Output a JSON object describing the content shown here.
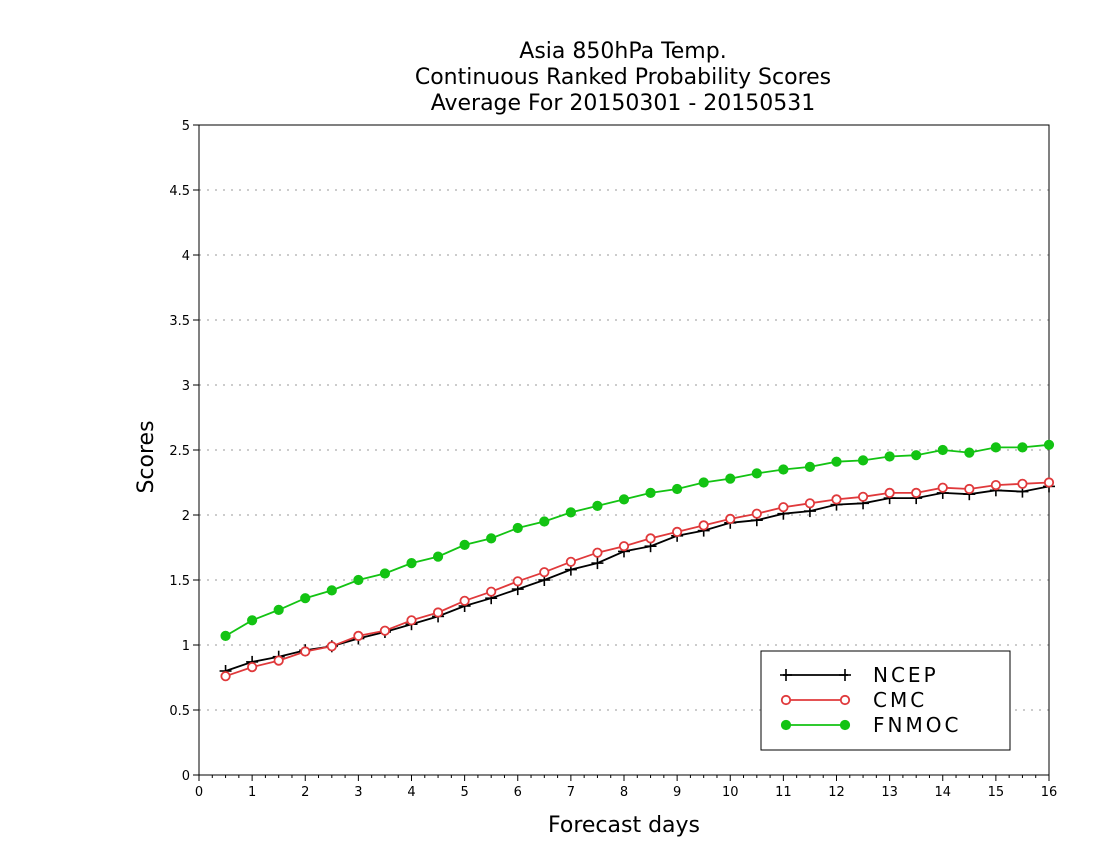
{
  "chart_data": {
    "type": "line",
    "title": [
      "Asia 850hPa Temp.",
      "Continuous Ranked Probability Scores",
      "Average For 20150301 - 20150531"
    ],
    "xlabel": "Forecast days",
    "ylabel": "Scores",
    "xlim": [
      0,
      16
    ],
    "ylim": [
      0,
      5
    ],
    "xticks": [
      "0",
      "1",
      "2",
      "3",
      "4",
      "5",
      "6",
      "7",
      "8",
      "9",
      "10",
      "11",
      "12",
      "13",
      "14",
      "15",
      "16"
    ],
    "yticks": [
      "0",
      "0.5",
      "1",
      "1.5",
      "2",
      "2.5",
      "3",
      "3.5",
      "4",
      "4.5",
      "5"
    ],
    "grid": true,
    "legend_position": "bottom-right",
    "x": [
      0.5,
      1,
      1.5,
      2,
      2.5,
      3,
      3.5,
      4,
      4.5,
      5,
      5.5,
      6,
      6.5,
      7,
      7.5,
      8,
      8.5,
      9,
      9.5,
      10,
      10.5,
      11,
      11.5,
      12,
      12.5,
      13,
      13.5,
      14,
      14.5,
      15,
      15.5,
      16
    ],
    "series": [
      {
        "name": "NCEP",
        "color": "#000000",
        "marker": "plus",
        "values": [
          0.8,
          0.87,
          0.91,
          0.96,
          0.99,
          1.05,
          1.1,
          1.16,
          1.22,
          1.3,
          1.36,
          1.43,
          1.5,
          1.58,
          1.63,
          1.72,
          1.76,
          1.84,
          1.88,
          1.94,
          1.96,
          2.01,
          2.03,
          2.08,
          2.09,
          2.13,
          2.13,
          2.17,
          2.16,
          2.19,
          2.18,
          2.22
        ]
      },
      {
        "name": "CMC",
        "color": "#e0393b",
        "marker": "open-circle",
        "values": [
          0.76,
          0.83,
          0.88,
          0.95,
          0.99,
          1.07,
          1.11,
          1.19,
          1.25,
          1.34,
          1.41,
          1.49,
          1.56,
          1.64,
          1.71,
          1.76,
          1.82,
          1.87,
          1.92,
          1.97,
          2.01,
          2.06,
          2.09,
          2.12,
          2.14,
          2.17,
          2.17,
          2.21,
          2.2,
          2.23,
          2.24,
          2.25
        ]
      },
      {
        "name": "FNMOC",
        "color": "#13c313",
        "marker": "filled-circle",
        "values": [
          1.07,
          1.19,
          1.27,
          1.36,
          1.42,
          1.5,
          1.55,
          1.63,
          1.68,
          1.77,
          1.82,
          1.9,
          1.95,
          2.02,
          2.07,
          2.12,
          2.17,
          2.2,
          2.25,
          2.28,
          2.32,
          2.35,
          2.37,
          2.41,
          2.42,
          2.45,
          2.46,
          2.5,
          2.48,
          2.52,
          2.52,
          2.54
        ]
      }
    ]
  }
}
